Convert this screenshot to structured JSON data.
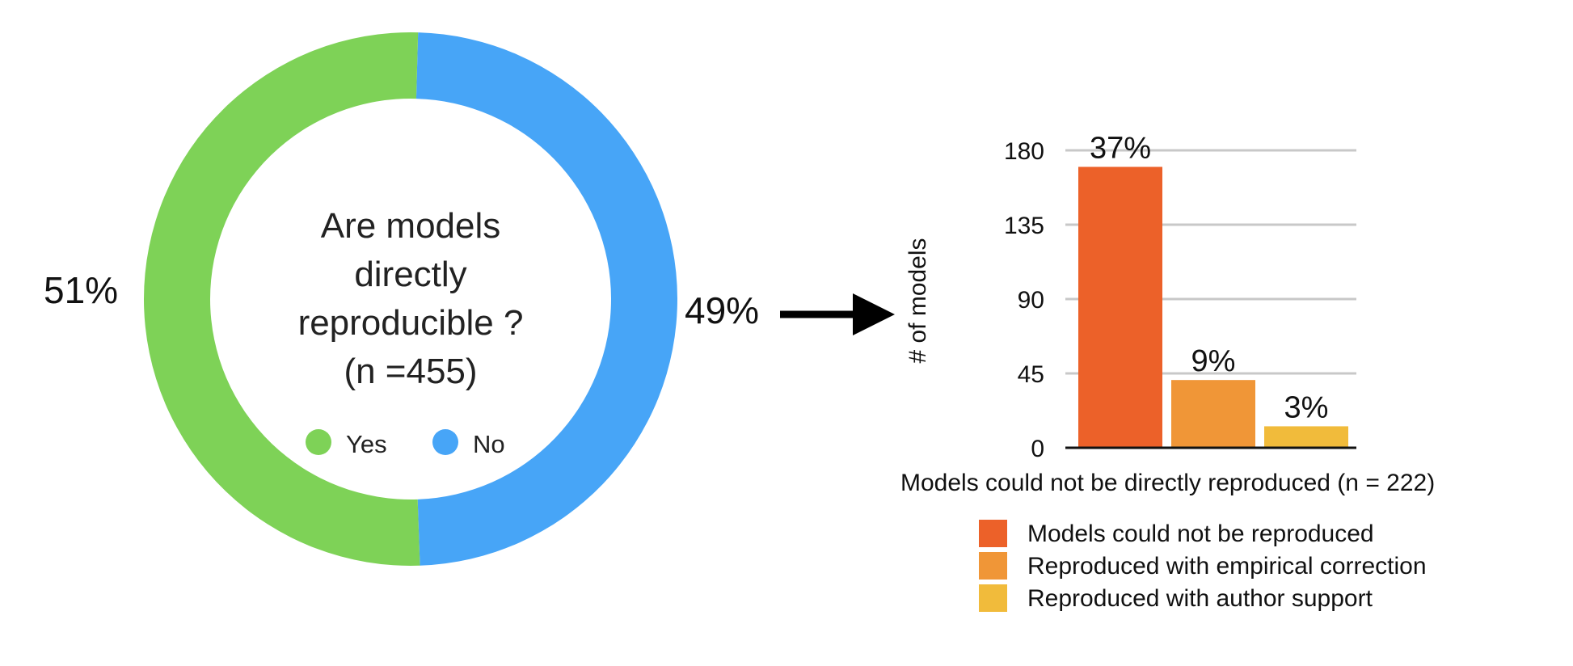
{
  "chart_data": [
    {
      "type": "pie",
      "title": "Are models directly reproducible ?",
      "subtitle": "(n =455)",
      "categories": [
        "Yes",
        "No"
      ],
      "values": [
        51,
        49
      ],
      "labels": [
        "51%",
        "49%"
      ],
      "colors": [
        "#7ed257",
        "#47a5f7"
      ],
      "legend": "inside-bottom"
    },
    {
      "type": "bar",
      "xlabel": "Models could not be directly reproduced (n = 222)",
      "ylabel": "# of models",
      "ylim": [
        0,
        180
      ],
      "yticks": [
        "0",
        "45",
        "90",
        "135",
        "180"
      ],
      "grid": true,
      "categories": [
        "Models could not be reproduced",
        "Reproduced with empirical correction",
        "Reproduced with author support"
      ],
      "values": [
        170,
        41,
        13
      ],
      "data_labels": [
        "37%",
        "9%",
        "3%"
      ],
      "colors": [
        "#ec6129",
        "#f09637",
        "#f1bb3b"
      ],
      "legend": "bottom"
    }
  ]
}
